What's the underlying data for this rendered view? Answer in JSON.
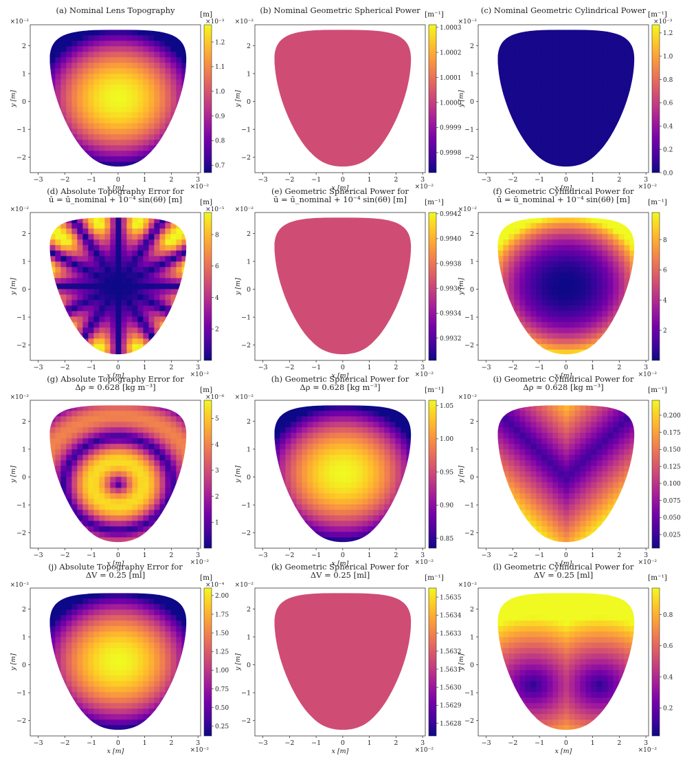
{
  "colormap": [
    "#0d0887",
    "#46039f",
    "#7201a8",
    "#9c179e",
    "#bd3786",
    "#d8576b",
    "#ed7953",
    "#fb9f3a",
    "#fdca26",
    "#f0f921"
  ],
  "chart_data": [
    {
      "type": "heatmap",
      "title": [
        "(a) Nominal Lens Topography"
      ],
      "pattern": "dome",
      "cb_unit": "[m]",
      "cb_exp": "×10⁻³",
      "cb_range": [
        0.67,
        1.27
      ],
      "cb_ticks": [
        "1.2",
        "1.1",
        "1.0",
        "0.9",
        "0.8",
        "0.7"
      ],
      "cb_tick_vals": [
        1.2,
        1.1,
        1.0,
        0.9,
        0.8,
        0.7
      ],
      "xlabel": "x [m]",
      "ylabel": "y [m]",
      "x_ticks": [
        "−3",
        "−2",
        "−1",
        "0",
        "1",
        "2",
        "3"
      ],
      "y_ticks": [
        "2",
        "1",
        "0",
        "−1",
        "−2"
      ],
      "x_exp": "×10⁻²",
      "y_exp": "×10⁻²"
    },
    {
      "type": "heatmap",
      "title": [
        "(b) Nominal Geometric Spherical Power"
      ],
      "pattern": "flat",
      "cb_unit": "[m⁻¹]",
      "cb_exp": "",
      "cb_range": [
        0.99972,
        1.00031
      ],
      "cb_ticks": [
        "1.0003",
        "1.0002",
        "1.0001",
        "1.0000",
        "0.9999",
        "0.9998"
      ],
      "cb_tick_vals": [
        1.0003,
        1.0002,
        1.0001,
        1.0,
        0.9999,
        0.9998
      ],
      "xlabel": "x [m]",
      "ylabel": "y [m]",
      "x_ticks": [
        "−3",
        "−2",
        "−1",
        "0",
        "1",
        "2",
        "3"
      ],
      "y_ticks": [
        "2",
        "1",
        "0",
        "−1",
        "−2"
      ],
      "x_exp": "×10⁻²",
      "y_exp": "×10⁻²"
    },
    {
      "type": "heatmap",
      "title": [
        "(c) Nominal Geometric Cylindrical Power"
      ],
      "pattern": "low",
      "cb_unit": "[m⁻¹]",
      "cb_exp": "×10⁻³",
      "cb_range": [
        0,
        1.27
      ],
      "cb_ticks": [
        "1.2",
        "1.0",
        "0.8",
        "0.6",
        "0.4",
        "0.2",
        "0.0"
      ],
      "cb_tick_vals": [
        1.2,
        1.0,
        0.8,
        0.6,
        0.4,
        0.2,
        0.0
      ],
      "xlabel": "x [m]",
      "ylabel": "y [m]",
      "x_ticks": [
        "−3",
        "−2",
        "−1",
        "0",
        "1",
        "2",
        "3"
      ],
      "y_ticks": [
        "2",
        "1",
        "0",
        "−1",
        "−2"
      ],
      "x_exp": "×10⁻²",
      "y_exp": "×10⁻²"
    },
    {
      "type": "heatmap",
      "title": [
        "(d) Absolute Topography Error for",
        "ū = ū_nominal + 10⁻⁴ sin(6θ) [m]"
      ],
      "pattern": "rays",
      "cb_unit": "[m]",
      "cb_exp": "×10⁻⁵",
      "cb_range": [
        0,
        9.4
      ],
      "cb_ticks": [
        "8",
        "6",
        "4",
        "2"
      ],
      "cb_tick_vals": [
        8,
        6,
        4,
        2
      ],
      "xlabel": "x [m]",
      "ylabel": "y [m]",
      "x_ticks": [
        "−3",
        "−2",
        "−1",
        "0",
        "1",
        "2",
        "3"
      ],
      "y_ticks": [
        "2",
        "1",
        "0",
        "−1",
        "−2"
      ],
      "x_exp": "×10⁻²",
      "y_exp": "×10⁻²"
    },
    {
      "type": "heatmap",
      "title": [
        "(e) Geometric Spherical Power for",
        "ū = ū_nominal + 10⁻⁴ sin(6θ) [m]"
      ],
      "pattern": "flat",
      "cb_unit": "[m⁻¹]",
      "cb_exp": "",
      "cb_range": [
        0.99302,
        0.99421
      ],
      "cb_ticks": [
        "0.9942",
        "0.9940",
        "0.9938",
        "0.9936",
        "0.9934",
        "0.9932"
      ],
      "cb_tick_vals": [
        0.9942,
        0.994,
        0.9938,
        0.9936,
        0.9934,
        0.9932
      ],
      "xlabel": "x [m]",
      "ylabel": "y [m]",
      "x_ticks": [
        "−3",
        "−2",
        "−1",
        "0",
        "1",
        "2",
        "3"
      ],
      "y_ticks": [
        "2",
        "1",
        "0",
        "−1",
        "−2"
      ],
      "x_exp": "×10⁻²",
      "y_exp": "×10⁻²"
    },
    {
      "type": "heatmap",
      "title": [
        "(f) Geometric Cylindrical Power for",
        "ū = ū_nominal + 10⁻⁴ sin(6θ) [m]"
      ],
      "pattern": "ring",
      "cb_unit": "[m⁻¹]",
      "cb_exp": "",
      "cb_range": [
        0,
        9.8
      ],
      "cb_ticks": [
        "8",
        "6",
        "4",
        "2"
      ],
      "cb_tick_vals": [
        8,
        6,
        4,
        2
      ],
      "xlabel": "x [m]",
      "ylabel": "y [m]",
      "x_ticks": [
        "−3",
        "−2",
        "−1",
        "0",
        "1",
        "2",
        "3"
      ],
      "y_ticks": [
        "2",
        "1",
        "0",
        "−1",
        "−2"
      ],
      "x_exp": "×10⁻²",
      "y_exp": "×10⁻²"
    },
    {
      "type": "heatmap",
      "title": [
        "(g) Absolute Topography Error for",
        "Δρ ≈ 0.628 [kg m⁻³]"
      ],
      "pattern": "wave",
      "cb_unit": "[m]",
      "cb_exp": "×10⁻⁶",
      "cb_range": [
        0,
        5.7
      ],
      "cb_ticks": [
        "5",
        "4",
        "3",
        "2",
        "1"
      ],
      "cb_tick_vals": [
        5,
        4,
        3,
        2,
        1
      ],
      "xlabel": "x [m]",
      "ylabel": "y [m]",
      "x_ticks": [
        "−3",
        "−2",
        "−1",
        "0",
        "1",
        "2",
        "3"
      ],
      "y_ticks": [
        "2",
        "1",
        "0",
        "−1",
        "−2"
      ],
      "x_exp": "×10⁻²",
      "y_exp": "×10⁻²"
    },
    {
      "type": "heatmap",
      "title": [
        "(h) Geometric Spherical Power for",
        "Δρ ≈ 0.628 [kg m⁻³]"
      ],
      "pattern": "dome",
      "cb_unit": "[m⁻¹]",
      "cb_exp": "",
      "cb_range": [
        0.835,
        1.058
      ],
      "cb_ticks": [
        "1.05",
        "1.00",
        "0.95",
        "0.90",
        "0.85"
      ],
      "cb_tick_vals": [
        1.05,
        1.0,
        0.95,
        0.9,
        0.85
      ],
      "xlabel": "x [m]",
      "ylabel": "y [m]",
      "x_ticks": [
        "−3",
        "−2",
        "−1",
        "0",
        "1",
        "2",
        "3"
      ],
      "y_ticks": [
        "2",
        "1",
        "0",
        "−1",
        "−2"
      ],
      "x_exp": "×10⁻²",
      "y_exp": "×10⁻²"
    },
    {
      "type": "heatmap",
      "title": [
        "(i) Geometric Cylindrical Power for",
        "Δρ ≈ 0.628 [kg m⁻³]"
      ],
      "pattern": "vee",
      "cb_unit": "[m⁻¹]",
      "cb_exp": "",
      "cb_range": [
        0.005,
        0.222
      ],
      "cb_ticks": [
        "0.200",
        "0.175",
        "0.150",
        "0.125",
        "0.100",
        "0.075",
        "0.050",
        "0.025"
      ],
      "cb_tick_vals": [
        0.2,
        0.175,
        0.15,
        0.125,
        0.1,
        0.075,
        0.05,
        0.025
      ],
      "xlabel": "x [m]",
      "ylabel": "y [m]",
      "x_ticks": [
        "−3",
        "−2",
        "−1",
        "0",
        "1",
        "2",
        "3"
      ],
      "y_ticks": [
        "2",
        "1",
        "0",
        "−1",
        "−2"
      ],
      "x_exp": "×10⁻²",
      "y_exp": "×10⁻²"
    },
    {
      "type": "heatmap",
      "title": [
        "(j) Absolute Topography Error for",
        "ΔV = 0.25 [ml]"
      ],
      "pattern": "dome",
      "cb_unit": "[m]",
      "cb_exp": "×10⁻⁴",
      "cb_range": [
        0.12,
        2.1
      ],
      "cb_ticks": [
        "2.00",
        "1.75",
        "1.50",
        "1.25",
        "1.00",
        "0.75",
        "0.50",
        "0.25"
      ],
      "cb_tick_vals": [
        2.0,
        1.75,
        1.5,
        1.25,
        1.0,
        0.75,
        0.5,
        0.25
      ],
      "xlabel": "x [m]",
      "ylabel": "y [m]",
      "x_ticks": [
        "−3",
        "−2",
        "−1",
        "0",
        "1",
        "2",
        "3"
      ],
      "y_ticks": [
        "2",
        "1",
        "0",
        "−1",
        "−2"
      ],
      "x_exp": "×10⁻²",
      "y_exp": "×10⁻²"
    },
    {
      "type": "heatmap",
      "title": [
        "(k) Geometric Spherical Power for",
        "ΔV = 0.25 [ml]"
      ],
      "pattern": "flat",
      "cb_unit": "[m⁻¹]",
      "cb_exp": "",
      "cb_range": [
        1.56273,
        1.56355
      ],
      "cb_ticks": [
        "1.5635",
        "1.5634",
        "1.5633",
        "1.5632",
        "1.5631",
        "1.5630",
        "1.5629",
        "1.5628"
      ],
      "cb_tick_vals": [
        1.5635,
        1.5634,
        1.5633,
        1.5632,
        1.5631,
        1.563,
        1.5629,
        1.5628
      ],
      "xlabel": "x [m]",
      "ylabel": "y [m]",
      "x_ticks": [
        "−3",
        "−2",
        "−1",
        "0",
        "1",
        "2",
        "3"
      ],
      "y_ticks": [
        "2",
        "1",
        "0",
        "−1",
        "−2"
      ],
      "x_exp": "×10⁻²",
      "y_exp": "×10⁻²"
    },
    {
      "type": "heatmap",
      "title": [
        "(l) Geometric Cylindrical Power for",
        "ΔV = 0.25 [ml]"
      ],
      "pattern": "bowl",
      "cb_unit": "[m⁻¹]",
      "cb_exp": "",
      "cb_range": [
        0.02,
        0.97
      ],
      "cb_ticks": [
        "0.8",
        "0.6",
        "0.4",
        "0.2"
      ],
      "cb_tick_vals": [
        0.8,
        0.6,
        0.4,
        0.2
      ],
      "xlabel": "x [m]",
      "ylabel": "y [m]",
      "x_ticks": [
        "−3",
        "−2",
        "−1",
        "0",
        "1",
        "2",
        "3"
      ],
      "y_ticks": [
        "2",
        "1",
        "0",
        "−1",
        "−2"
      ],
      "x_exp": "×10⁻²",
      "y_exp": "×10⁻²"
    }
  ]
}
